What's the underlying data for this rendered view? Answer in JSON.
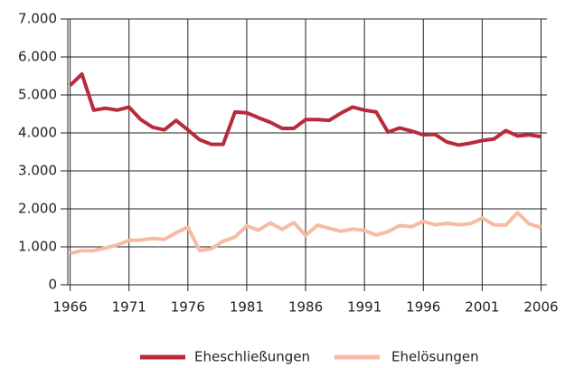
{
  "chart_data": {
    "type": "line",
    "x": [
      1966,
      1967,
      1968,
      1969,
      1970,
      1971,
      1972,
      1973,
      1974,
      1975,
      1976,
      1977,
      1978,
      1979,
      1980,
      1981,
      1982,
      1983,
      1984,
      1985,
      1986,
      1987,
      1988,
      1989,
      1990,
      1991,
      1992,
      1993,
      1994,
      1995,
      1996,
      1997,
      1998,
      1999,
      2000,
      2001,
      2002,
      2003,
      2004,
      2005,
      2006
    ],
    "series": [
      {
        "name": "Eheschließungen",
        "color": "#b92a3c",
        "values": [
          5250,
          5550,
          4600,
          4650,
          4600,
          4680,
          4350,
          4150,
          4080,
          4330,
          4080,
          3820,
          3700,
          3700,
          4550,
          4530,
          4400,
          4280,
          4120,
          4120,
          4350,
          4350,
          4330,
          4520,
          4680,
          4600,
          4550,
          4020,
          4130,
          4050,
          3950,
          3960,
          3760,
          3680,
          3730,
          3800,
          3840,
          4060,
          3920,
          3950,
          3900
        ]
      },
      {
        "name": "Ehelösungen",
        "color": "#f6bba4",
        "values": [
          830,
          900,
          900,
          970,
          1050,
          1170,
          1180,
          1220,
          1200,
          1370,
          1520,
          900,
          950,
          1150,
          1260,
          1550,
          1440,
          1630,
          1460,
          1640,
          1300,
          1570,
          1490,
          1410,
          1470,
          1430,
          1310,
          1400,
          1560,
          1530,
          1670,
          1580,
          1620,
          1580,
          1610,
          1760,
          1580,
          1570,
          1900,
          1600,
          1510
        ]
      }
    ],
    "xlim": [
      1965.8,
      2006.5
    ],
    "xticks": [
      1966,
      1971,
      1976,
      1981,
      1986,
      1991,
      1996,
      2001,
      2006
    ],
    "ylim": [
      0,
      7000
    ],
    "yticks": [
      0,
      {
        "value": 1000,
        "label": "1.000"
      },
      {
        "value": 2000,
        "label": "2.000"
      },
      {
        "value": 3000,
        "label": "3.000"
      },
      {
        "value": 4000,
        "label": "4.000"
      },
      {
        "value": 5000,
        "label": "5.000"
      },
      {
        "value": 6000,
        "label": "6.000"
      },
      {
        "value": 7000,
        "label": "7.000"
      }
    ],
    "grid": true,
    "legend": "bottom"
  }
}
